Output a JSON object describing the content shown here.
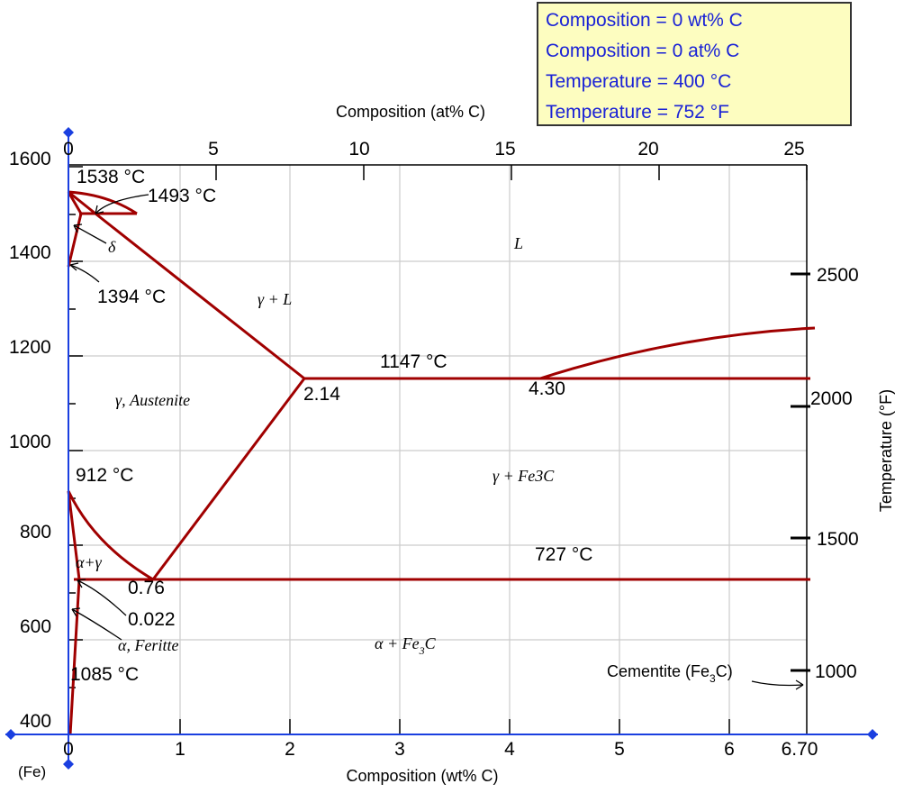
{
  "readout": {
    "wt": "Composition = 0 wt% C",
    "at": "Composition = 0 at% C",
    "tc": "Temperature = 400 °C",
    "tf": "Temperature = 752 °F"
  },
  "axes": {
    "bottom_label": "Composition (wt% C)",
    "top_label": "Composition (at% C)",
    "right_label": "Temperature (°F)",
    "fe_label": "(Fe)",
    "bottom_ticks": [
      "0",
      "1",
      "2",
      "3",
      "4",
      "5",
      "6",
      "6.70"
    ],
    "top_ticks": [
      "0",
      "5",
      "10",
      "15",
      "20",
      "25"
    ],
    "left_ticks": [
      "400",
      "600",
      "800",
      "1000",
      "1200",
      "1400",
      "1600"
    ],
    "right_ticks": [
      "1000",
      "1500",
      "2000",
      "2500"
    ]
  },
  "phase_labels": {
    "liquid": "L",
    "gamma_liquid": "γ + L",
    "austenite": "γ, Austenite",
    "gamma_fe3c": "γ + Fe3C",
    "alpha_gamma": "α+γ",
    "ferrite": "α, Feritte",
    "delta": "δ",
    "alpha_fe3c_main": "α + Fe",
    "alpha_fe3c_sub": "3",
    "alpha_fe3c_end": "C",
    "cementite_main": "Cementite (Fe",
    "cementite_sub": "3",
    "cementite_end": "C)"
  },
  "points": {
    "t1538": "1538 °C",
    "t1493": "1493 °C",
    "t1394": "1394 °C",
    "t1147": "1147 °C",
    "c214": "2.14",
    "c430": "4.30",
    "t912": "912 °C",
    "t727": "727 °C",
    "c076": "0.76",
    "c0022": "0.022",
    "t1085": "1085 °C"
  },
  "colors": {
    "curve": "#a00000",
    "axis": "#1a3fe0",
    "grid": "#cccccc",
    "handle": "#1a3fe0",
    "readout_bg": "#fdfdc0"
  }
}
